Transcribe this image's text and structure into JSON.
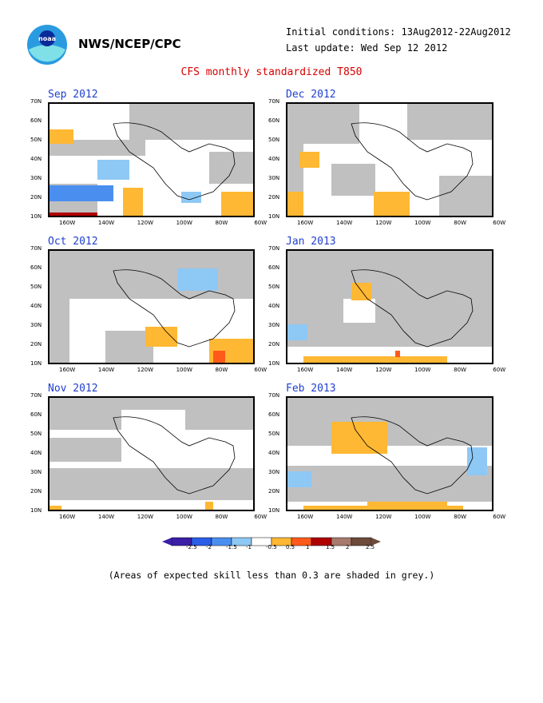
{
  "header": {
    "logo_text": "noaa",
    "org": "NWS/NCEP/CPC",
    "initial_conditions": "Initial conditions: 13Aug2012-22Aug2012",
    "last_update": "Last update: Wed Sep 12 2012",
    "title": "CFS monthly standardized T850"
  },
  "axis_labels": {
    "lat": [
      "70N",
      "60N",
      "50N",
      "40N",
      "30N",
      "20N",
      "10N"
    ],
    "lon": [
      "160W",
      "140W",
      "120W",
      "100W",
      "80W",
      "60W"
    ]
  },
  "panels": [
    {
      "title": "Sep 2012"
    },
    {
      "title": "Dec 2012"
    },
    {
      "title": "Oct 2012"
    },
    {
      "title": "Jan 2013"
    },
    {
      "title": "Nov 2012"
    },
    {
      "title": "Feb 2013"
    }
  ],
  "colorbar": {
    "labels": [
      "-2.5",
      "-2",
      "-1.5",
      "-1",
      "-0.5",
      "0.5",
      "1",
      "1.5",
      "2",
      "2.5"
    ],
    "colors": [
      "#3a1fa8",
      "#2a5ee8",
      "#4a8ff0",
      "#8ec8f5",
      "#ffffff",
      "#ffb833",
      "#ff5a1a",
      "#b00000",
      "#a87a6e",
      "#6e4a3a"
    ],
    "grey": "#c0c0c0"
  },
  "note": "(Areas of expected skill less than 0.3 are shaded in grey.)"
}
